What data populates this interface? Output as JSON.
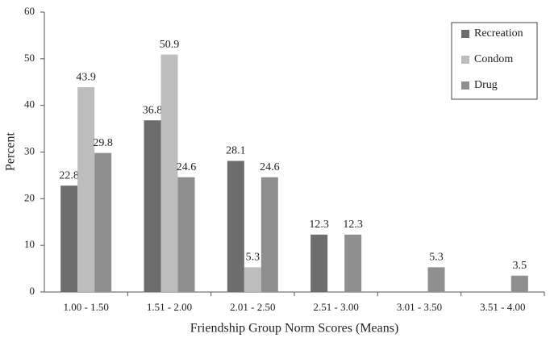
{
  "chart_data": {
    "type": "bar",
    "x_label": "Friendship Group Norm Scores (Means)",
    "y_label": "Percent",
    "categories": [
      "1.00 - 1.50",
      "1.51 - 2.00",
      "2.01 - 2.50",
      "2.51 - 3.00",
      "3.01 - 3.50",
      "3.51 - 4.00"
    ],
    "series": [
      {
        "name": "Recreation",
        "color": "#6d6d6d",
        "values": [
          22.8,
          36.8,
          28.1,
          12.3,
          null,
          null
        ]
      },
      {
        "name": "Condom",
        "color": "#bdbdbd",
        "values": [
          43.9,
          50.9,
          5.3,
          null,
          null,
          null
        ]
      },
      {
        "name": "Drug",
        "color": "#8f8f8f",
        "values": [
          29.8,
          24.6,
          24.6,
          12.3,
          5.3,
          3.5
        ]
      }
    ],
    "ylim": [
      0,
      60
    ],
    "yticks": [
      0,
      10,
      20,
      30,
      40,
      50,
      60
    ],
    "legend": "top-right",
    "grid": false
  }
}
